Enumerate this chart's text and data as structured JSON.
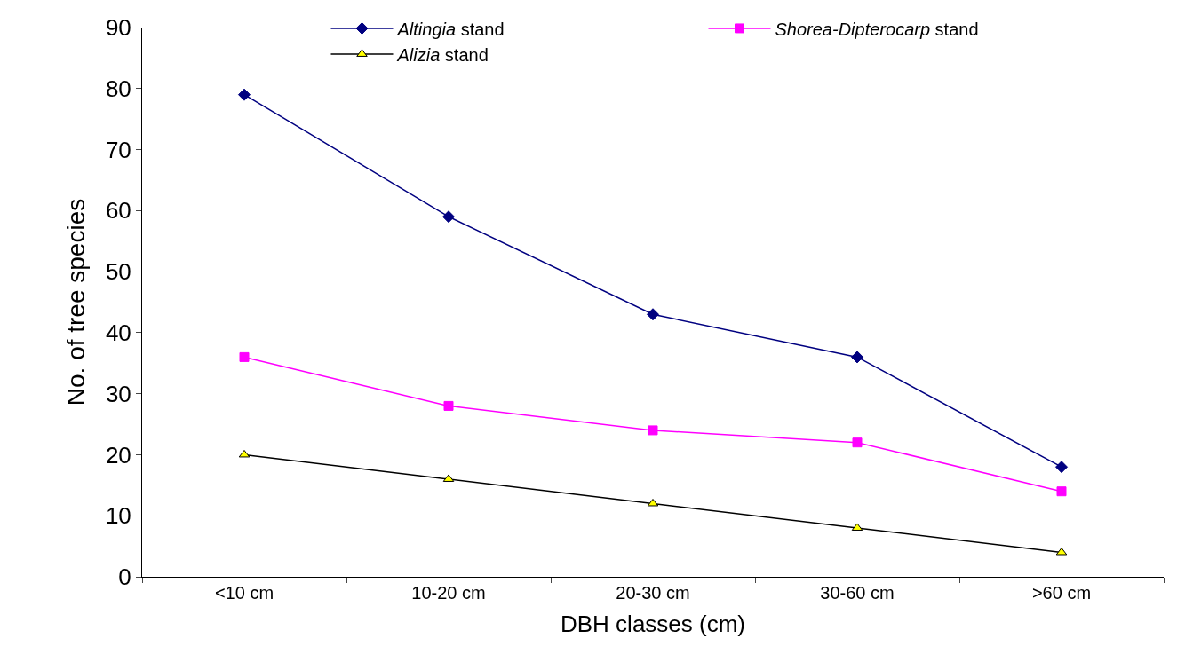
{
  "chart_data": {
    "type": "line",
    "xlabel": "DBH classes (cm)",
    "ylabel": "No. of tree species",
    "categories": [
      "<10 cm",
      "10-20 cm",
      "20-30 cm",
      "30-60 cm",
      ">60 cm"
    ],
    "series": [
      {
        "name": "Altingia stand",
        "color": "#000080",
        "values": [
          79,
          59,
          43,
          36,
          18
        ],
        "marker": "diamond"
      },
      {
        "name": "Shorea-Dipterocarp stand",
        "color": "#ff00ff",
        "values": [
          36,
          28,
          24,
          22,
          14
        ],
        "marker": "square"
      },
      {
        "name": "Alizia stand",
        "color": "#000000",
        "colors": [
          "#ffff00",
          "#ffff00",
          "#ffff00",
          "#ffff00",
          "#ffff00"
        ],
        "values": [
          20,
          16,
          12,
          8,
          4
        ],
        "marker": "triangle"
      }
    ],
    "ylim": [
      0,
      90
    ],
    "yticks": [
      0,
      10,
      20,
      30,
      40,
      50,
      60,
      70,
      80,
      90
    ],
    "legend": "top",
    "line_style": "solid"
  }
}
